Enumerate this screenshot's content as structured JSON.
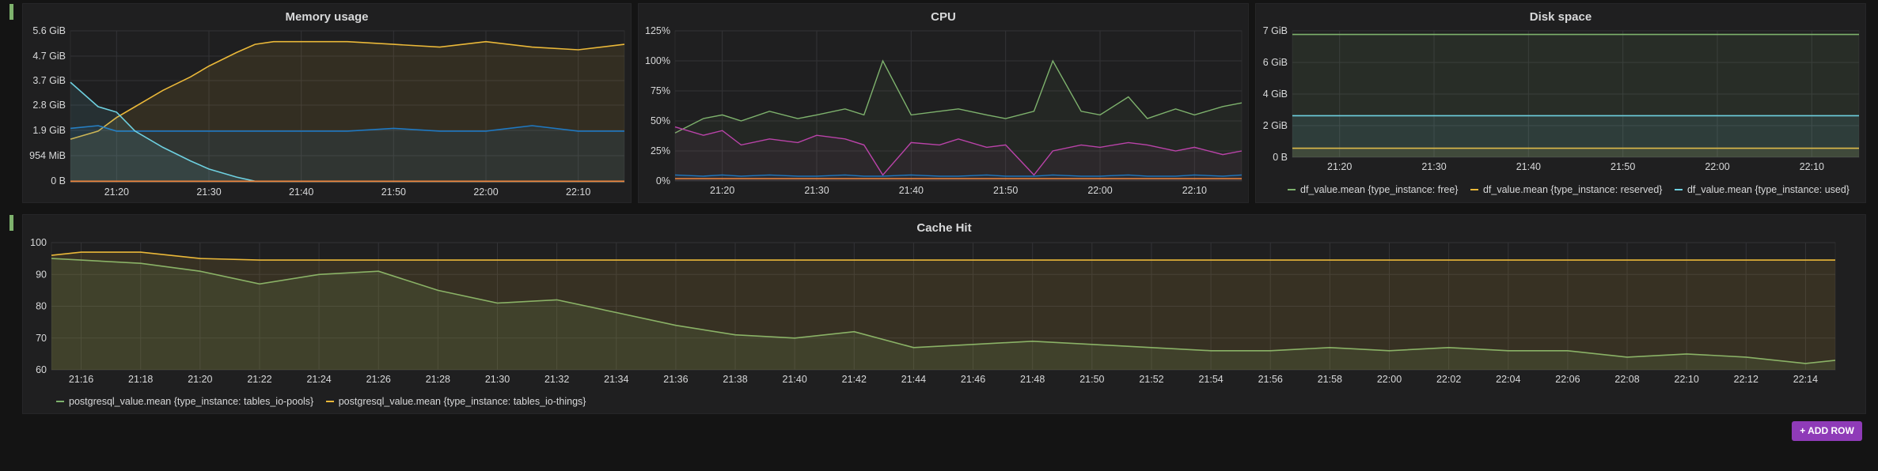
{
  "colors": {
    "green": "#7eb26d",
    "yellow": "#eab839",
    "cyan": "#6ed0e0",
    "blue": "#1f78c1",
    "orange": "#ef843c",
    "red": "#e24d42",
    "magenta": "#ba43a9",
    "purple_button": "#8f3bb8"
  },
  "add_row_label": "+ ADD ROW",
  "panels": {
    "memory": {
      "title": "Memory usage",
      "y_ticks": [
        "5.6 GiB",
        "4.7 GiB",
        "3.7 GiB",
        "2.8 GiB",
        "1.9 GiB",
        "954 MiB",
        "0 B"
      ],
      "x_ticks": [
        "21:20",
        "21:30",
        "21:40",
        "21:50",
        "22:00",
        "22:10"
      ]
    },
    "cpu": {
      "title": "CPU",
      "y_ticks": [
        "125%",
        "100%",
        "75%",
        "50%",
        "25%",
        "0%"
      ],
      "x_ticks": [
        "21:20",
        "21:30",
        "21:40",
        "21:50",
        "22:00",
        "22:10"
      ]
    },
    "disk": {
      "title": "Disk space",
      "y_ticks": [
        "7 GiB",
        "6 GiB",
        "4 GiB",
        "2 GiB",
        "0 B"
      ],
      "x_ticks": [
        "21:20",
        "21:30",
        "21:40",
        "21:50",
        "22:00",
        "22:10"
      ],
      "legend": [
        {
          "label": "df_value.mean {type_instance: free}",
          "color": "#7eb26d"
        },
        {
          "label": "df_value.mean {type_instance: reserved}",
          "color": "#eab839"
        },
        {
          "label": "df_value.mean {type_instance: used}",
          "color": "#6ed0e0"
        }
      ]
    },
    "cache": {
      "title": "Cache Hit",
      "y_ticks": [
        "100",
        "90",
        "80",
        "70",
        "60"
      ],
      "x_ticks": [
        "21:16",
        "21:18",
        "21:20",
        "21:22",
        "21:24",
        "21:26",
        "21:28",
        "21:30",
        "21:32",
        "21:34",
        "21:36",
        "21:38",
        "21:40",
        "21:42",
        "21:44",
        "21:46",
        "21:48",
        "21:50",
        "21:52",
        "21:54",
        "21:56",
        "21:58",
        "22:00",
        "22:02",
        "22:04",
        "22:06",
        "22:08",
        "22:10",
        "22:12",
        "22:14"
      ],
      "legend": [
        {
          "label": "postgresql_value.mean {type_instance: tables_io-pools}",
          "color": "#7eb26d"
        },
        {
          "label": "postgresql_value.mean {type_instance: tables_io-things}",
          "color": "#eab839"
        }
      ]
    }
  },
  "chart_data": [
    {
      "type": "area",
      "title": "Memory usage",
      "xlabel": "",
      "ylabel": "",
      "ylim": [
        0,
        5.6
      ],
      "x": [
        "21:15",
        "21:18",
        "21:20",
        "21:22",
        "21:25",
        "21:28",
        "21:30",
        "21:33",
        "21:35",
        "21:37",
        "21:40",
        "21:45",
        "21:50",
        "21:55",
        "22:00",
        "22:05",
        "22:10",
        "22:15"
      ],
      "series": [
        {
          "name": "",
          "values": [
            1.6,
            1.9,
            2.4,
            2.8,
            3.4,
            3.9,
            4.3,
            4.8,
            5.1,
            5.2,
            5.2,
            5.2,
            5.1,
            5.0,
            5.2,
            5.0,
            4.9,
            5.1
          ]
        },
        {
          "name": "",
          "values": [
            2.0,
            2.1,
            1.9,
            1.9,
            1.9,
            1.9,
            1.9,
            1.9,
            1.9,
            1.9,
            1.9,
            1.9,
            2.0,
            1.9,
            1.9,
            2.1,
            1.9,
            1.9
          ]
        },
        {
          "name": "",
          "values": [
            3.7,
            2.8,
            2.6,
            1.9,
            1.3,
            0.8,
            0.5,
            0.2,
            0.05,
            0.05,
            0.05,
            0.05,
            0.05,
            0.05,
            0.05,
            0.05,
            0.05,
            0.05
          ]
        },
        {
          "name": "",
          "values": [
            0.05,
            0.05,
            0.05,
            0.05,
            0.05,
            0.05,
            0.05,
            0.05,
            0.05,
            0.05,
            0.05,
            0.05,
            0.05,
            0.05,
            0.05,
            0.05,
            0.05,
            0.05
          ]
        }
      ]
    },
    {
      "type": "line",
      "title": "CPU",
      "xlabel": "",
      "ylabel": "",
      "ylim": [
        0,
        125
      ],
      "x": [
        "21:15",
        "21:18",
        "21:20",
        "21:22",
        "21:25",
        "21:28",
        "21:30",
        "21:33",
        "21:35",
        "21:37",
        "21:40",
        "21:43",
        "21:45",
        "21:48",
        "21:50",
        "21:53",
        "21:55",
        "21:58",
        "22:00",
        "22:03",
        "22:05",
        "22:08",
        "22:10",
        "22:13",
        "22:15"
      ],
      "series": [
        {
          "name": "",
          "values": [
            40,
            52,
            55,
            50,
            58,
            52,
            55,
            60,
            55,
            100,
            55,
            58,
            60,
            55,
            52,
            58,
            100,
            58,
            55,
            70,
            52,
            60,
            55,
            62,
            65
          ]
        },
        {
          "name": "",
          "values": [
            45,
            38,
            42,
            30,
            35,
            32,
            38,
            35,
            30,
            5,
            32,
            30,
            35,
            28,
            30,
            5,
            25,
            30,
            28,
            32,
            30,
            25,
            28,
            22,
            25
          ]
        },
        {
          "name": "",
          "values": [
            5,
            4,
            5,
            4,
            5,
            4,
            4,
            5,
            4,
            4,
            5,
            4,
            4,
            5,
            4,
            4,
            5,
            4,
            4,
            5,
            4,
            4,
            5,
            4,
            5
          ]
        },
        {
          "name": "",
          "values": [
            2,
            2,
            2,
            2,
            2,
            2,
            2,
            2,
            2,
            2,
            2,
            2,
            2,
            2,
            2,
            2,
            2,
            2,
            2,
            2,
            2,
            2,
            2,
            2,
            2
          ]
        }
      ]
    },
    {
      "type": "area",
      "title": "Disk space",
      "xlabel": "",
      "ylabel": "",
      "ylim": [
        0,
        7
      ],
      "x": [
        "21:15",
        "22:15"
      ],
      "series": [
        {
          "name": "df_value.mean {type_instance: free}",
          "values": [
            6.8,
            6.8
          ]
        },
        {
          "name": "df_value.mean {type_instance: reserved}",
          "values": [
            0.5,
            0.5
          ]
        },
        {
          "name": "df_value.mean {type_instance: used}",
          "values": [
            2.3,
            2.3
          ]
        }
      ]
    },
    {
      "type": "area",
      "title": "Cache Hit",
      "xlabel": "",
      "ylabel": "",
      "ylim": [
        60,
        100
      ],
      "x": [
        "21:15",
        "21:16",
        "21:18",
        "21:20",
        "21:22",
        "21:24",
        "21:26",
        "21:28",
        "21:30",
        "21:32",
        "21:34",
        "21:36",
        "21:38",
        "21:40",
        "21:42",
        "21:44",
        "21:46",
        "21:48",
        "21:50",
        "21:52",
        "21:54",
        "21:56",
        "21:58",
        "22:00",
        "22:02",
        "22:04",
        "22:06",
        "22:08",
        "22:10",
        "22:12",
        "22:14",
        "22:15"
      ],
      "series": [
        {
          "name": "postgresql_value.mean {type_instance: tables_io-pools}",
          "values": [
            95,
            94.5,
            93.5,
            91,
            87,
            90,
            91,
            85,
            81,
            82,
            78,
            74,
            71,
            70,
            72,
            67,
            68,
            69,
            68,
            67,
            66,
            66,
            67,
            66,
            67,
            66,
            66,
            64,
            65,
            64,
            62,
            63
          ]
        },
        {
          "name": "postgresql_value.mean {type_instance: tables_io-things}",
          "values": [
            96,
            97,
            97,
            95,
            94.5,
            94.5,
            94.5,
            94.5,
            94.5,
            94.5,
            94.5,
            94.5,
            94.5,
            94.5,
            94.5,
            94.5,
            94.5,
            94.5,
            94.5,
            94.5,
            94.5,
            94.5,
            94.5,
            94.5,
            94.5,
            94.5,
            94.5,
            94.5,
            94.5,
            94.5,
            94.5,
            94.5
          ]
        }
      ]
    }
  ]
}
